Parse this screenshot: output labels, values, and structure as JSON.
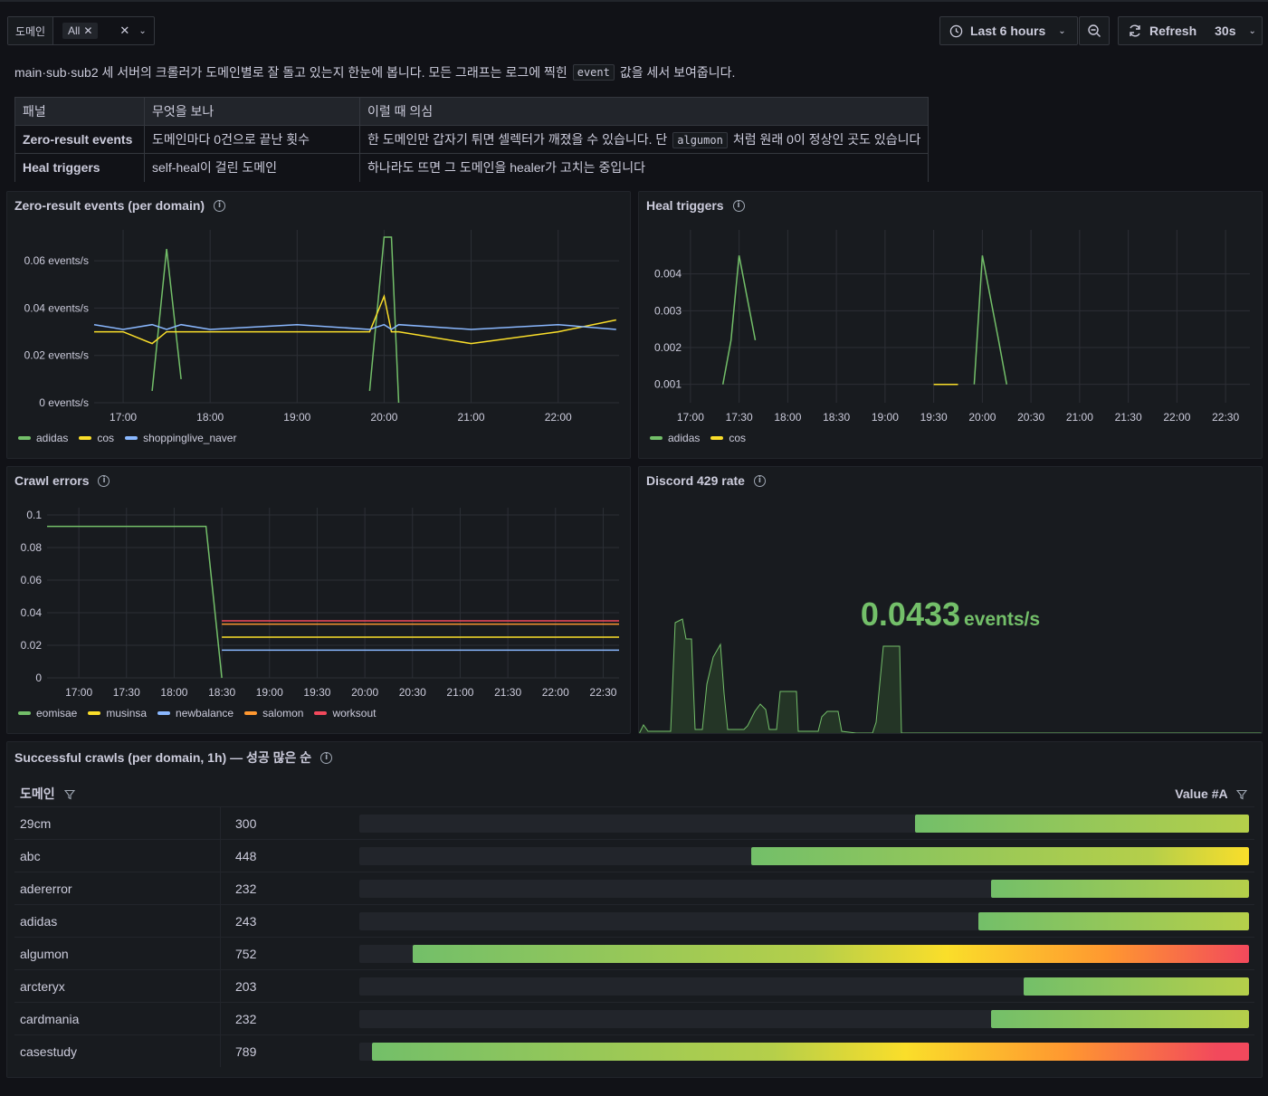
{
  "variable": {
    "label": "도메인",
    "chip": "All"
  },
  "time_picker": {
    "range": "Last 6 hours"
  },
  "refresh": {
    "label": "Refresh",
    "interval": "30s"
  },
  "description": {
    "before": "main·sub·sub2 세 서버의 크롤러가 도메인별로 잘 돌고 있는지 한눈에 봅니다. 모든 그래프는 로그에 찍힌",
    "code": "event",
    "after": "값을 세서 보여줍니다."
  },
  "info_table": {
    "headers": [
      "패널",
      "무엇을 보나",
      "이럴 때 의심"
    ],
    "rows": [
      {
        "panel": "Zero-result events",
        "what": "도메인마다 0건으로 끝난 횟수",
        "suspect_before": "한 도메인만 갑자기 튀면 셀렉터가 깨졌을 수 있습니다. 단",
        "suspect_code": "algumon",
        "suspect_after": "처럼 원래 0이 정상인 곳도 있습니다"
      },
      {
        "panel": "Heal triggers",
        "what": "self-heal이 걸린 도메인",
        "suspect_before": "하나라도 뜨면 그 도메인을 healer가 고치는 중입니다",
        "suspect_code": "",
        "suspect_after": ""
      }
    ]
  },
  "colors": {
    "green": "#73bf69",
    "yellow": "#fade2a",
    "blue": "#8ab8ff",
    "orange": "#ff9830",
    "red": "#f2495c"
  },
  "panels": {
    "zero": {
      "title": "Zero-result events (per domain)",
      "y_ticks": [
        "0.06 events/s",
        "0.04 events/s",
        "0.02 events/s",
        "0 events/s"
      ],
      "x_ticks": [
        "17:00",
        "18:00",
        "19:00",
        "20:00",
        "21:00",
        "22:00"
      ],
      "legend": [
        "adidas",
        "cos",
        "shoppinglive_naver"
      ]
    },
    "heal": {
      "title": "Heal triggers",
      "y_ticks": [
        "0.004",
        "0.003",
        "0.002",
        "0.001"
      ],
      "x_ticks": [
        "17:00",
        "17:30",
        "18:00",
        "18:30",
        "19:00",
        "19:30",
        "20:00",
        "20:30",
        "21:00",
        "21:30",
        "22:00",
        "22:30"
      ],
      "legend": [
        "adidas",
        "cos"
      ]
    },
    "crawl": {
      "title": "Crawl errors",
      "y_ticks": [
        "0.1",
        "0.08",
        "0.06",
        "0.04",
        "0.02",
        "0"
      ],
      "x_ticks": [
        "17:00",
        "17:30",
        "18:00",
        "18:30",
        "19:00",
        "19:30",
        "20:00",
        "20:30",
        "21:00",
        "21:30",
        "22:00",
        "22:30"
      ],
      "legend": [
        "eomisae",
        "musinsa",
        "newbalance",
        "salomon",
        "worksout"
      ]
    },
    "discord": {
      "title": "Discord 429 rate",
      "value": "0.0433",
      "unit": "events/s"
    },
    "success": {
      "title": "Successful crawls (per domain, 1h) — 성공 많은 순",
      "col_domain": "도메인",
      "col_value": "Value #A",
      "max": 800,
      "rows": [
        {
          "domain": "29cm",
          "value": 300
        },
        {
          "domain": "abc",
          "value": 448
        },
        {
          "domain": "adererror",
          "value": 232
        },
        {
          "domain": "adidas",
          "value": 243
        },
        {
          "domain": "algumon",
          "value": 752
        },
        {
          "domain": "arcteryx",
          "value": 203
        },
        {
          "domain": "cardmania",
          "value": 232
        },
        {
          "domain": "casestudy",
          "value": 789
        }
      ]
    }
  },
  "chart_data": [
    {
      "type": "line",
      "title": "Zero-result events (per domain)",
      "x": [
        "16:40",
        "17:00",
        "17:20",
        "17:30",
        "17:40",
        "18:00",
        "19:00",
        "19:50",
        "20:00",
        "20:05",
        "20:10",
        "21:00",
        "22:00",
        "22:40"
      ],
      "series": [
        {
          "name": "adidas",
          "values": [
            null,
            null,
            0.005,
            0.065,
            0.01,
            null,
            null,
            0.005,
            0.07,
            0.07,
            0.0,
            null,
            null,
            null
          ]
        },
        {
          "name": "cos",
          "values": [
            0.03,
            0.03,
            0.025,
            0.03,
            0.03,
            0.03,
            0.03,
            0.03,
            0.045,
            0.03,
            0.03,
            0.025,
            0.03,
            0.035
          ]
        },
        {
          "name": "shoppinglive_naver",
          "values": [
            0.033,
            0.031,
            0.033,
            0.031,
            0.033,
            0.031,
            0.033,
            0.031,
            0.033,
            0.031,
            0.033,
            0.031,
            0.033,
            0.031
          ]
        }
      ],
      "ylim": [
        0,
        0.07
      ]
    },
    {
      "type": "line",
      "title": "Heal triggers",
      "x": [
        "17:20",
        "17:25",
        "17:30",
        "17:40",
        "17:45",
        "19:30",
        "19:45",
        "19:55",
        "20:00",
        "20:10",
        "20:15"
      ],
      "series": [
        {
          "name": "adidas",
          "values": [
            0.001,
            0.0022,
            0.0045,
            0.0022,
            null,
            null,
            null,
            0.001,
            0.0045,
            0.0022,
            0.001
          ]
        },
        {
          "name": "cos",
          "values": [
            null,
            null,
            null,
            null,
            null,
            0.001,
            0.001,
            null,
            null,
            null,
            null
          ]
        }
      ],
      "ylim": [
        0.0005,
        0.005
      ]
    },
    {
      "type": "line",
      "title": "Crawl errors",
      "x": [
        "16:40",
        "17:00",
        "17:30",
        "18:00",
        "18:20",
        "18:30",
        "19:00",
        "19:30",
        "20:00",
        "20:30",
        "21:00",
        "21:30",
        "22:00",
        "22:40"
      ],
      "series": [
        {
          "name": "eomisae",
          "values": [
            0.093,
            0.093,
            0.093,
            0.093,
            0.093,
            0.0,
            null,
            null,
            null,
            null,
            null,
            null,
            null,
            null
          ]
        },
        {
          "name": "musinsa",
          "values": [
            null,
            null,
            null,
            null,
            null,
            0.025,
            0.025,
            0.025,
            0.025,
            0.025,
            0.025,
            0.025,
            0.025,
            0.025
          ]
        },
        {
          "name": "newbalance",
          "values": [
            null,
            null,
            null,
            null,
            null,
            0.017,
            0.017,
            0.017,
            0.017,
            0.017,
            0.017,
            0.017,
            0.017,
            0.017
          ]
        },
        {
          "name": "salomon",
          "values": [
            null,
            null,
            null,
            null,
            null,
            0.033,
            0.033,
            0.033,
            0.033,
            0.033,
            0.033,
            0.033,
            0.033,
            0.033
          ]
        },
        {
          "name": "worksout",
          "values": [
            null,
            null,
            null,
            null,
            null,
            0.035,
            0.035,
            0.035,
            0.035,
            0.035,
            0.035,
            0.035,
            0.035,
            0.035
          ]
        }
      ],
      "ylim": [
        0,
        0.1
      ]
    },
    {
      "type": "bar",
      "title": "Successful crawls (per domain, 1h) — 성공 많은 순",
      "categories": [
        "29cm",
        "abc",
        "adererror",
        "adidas",
        "algumon",
        "arcteryx",
        "cardmania",
        "casestudy"
      ],
      "values": [
        300,
        448,
        232,
        243,
        752,
        203,
        232,
        789
      ]
    }
  ]
}
